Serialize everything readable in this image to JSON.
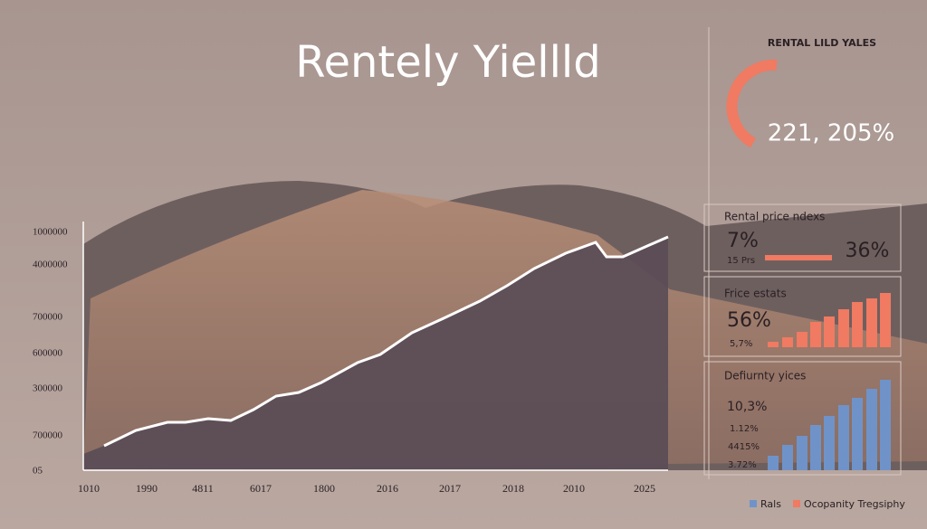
{
  "header": {
    "title": "Rentely Yiellld"
  },
  "main_chart": {
    "y_labels": [
      "1000000",
      "4000000",
      "700000",
      "600000",
      "300000",
      "700000",
      "05"
    ],
    "x_labels": [
      "1010",
      "1990",
      "4811",
      "6017",
      "1800",
      "2016",
      "2017",
      "2018",
      "2010",
      "2025"
    ]
  },
  "panel": {
    "title": "RENTAL LILD YALES",
    "gauge_value": "221, 205%",
    "cards": [
      {
        "title": "Rental price ndexs",
        "main": "7%",
        "sub": "15 Prs",
        "side": "36%"
      },
      {
        "title": "Frice estats",
        "main": "56%",
        "sub": "5,7%"
      },
      {
        "title": "Defiurnty yices",
        "main": "10,3%",
        "lines": [
          "1.12%",
          "4415%",
          "3.72%"
        ]
      }
    ]
  },
  "legend": [
    "Rals",
    "Ocopanity Tregsiphy"
  ]
}
